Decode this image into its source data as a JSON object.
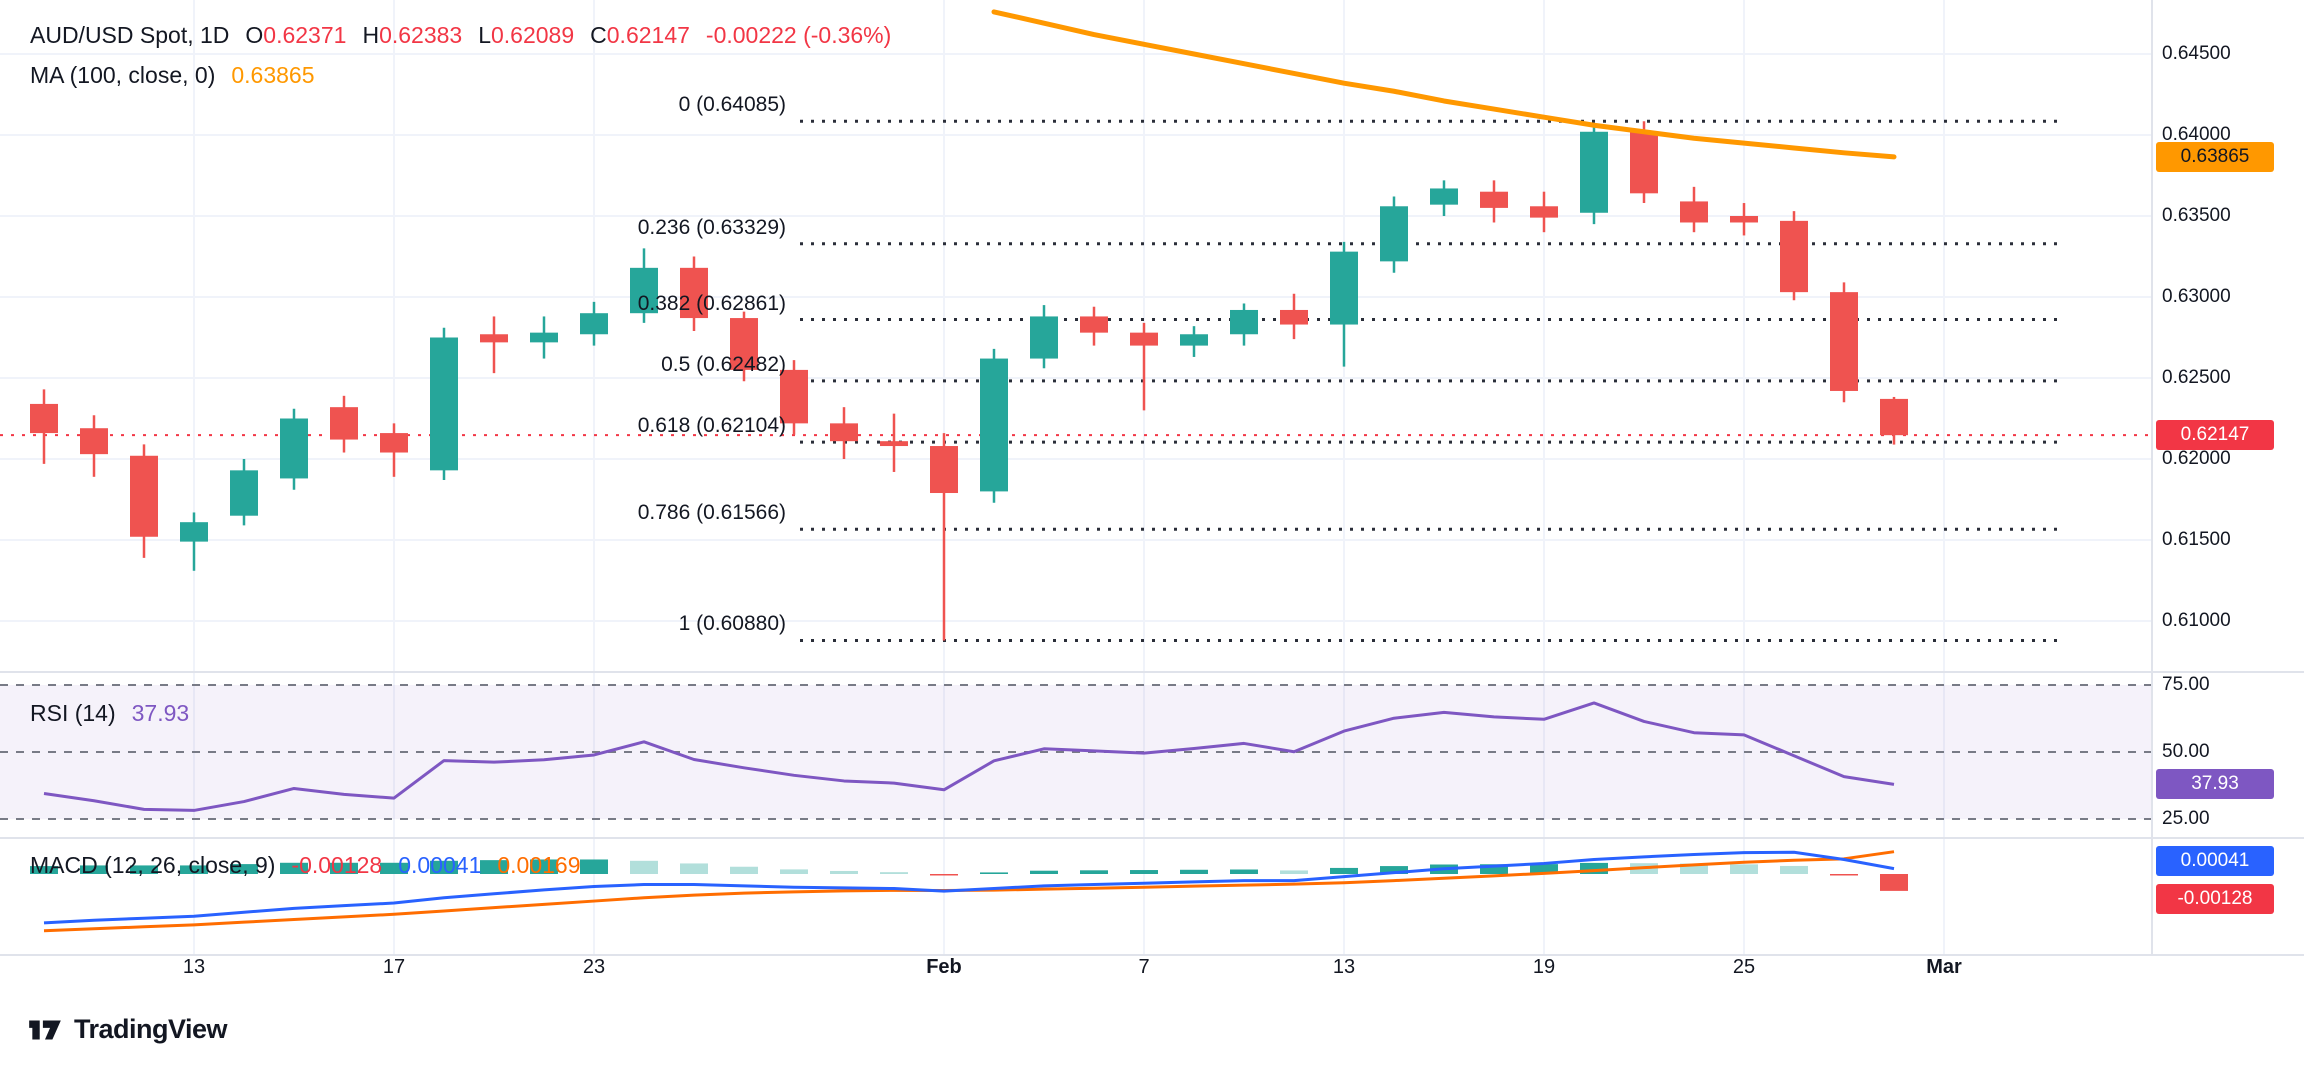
{
  "header": {
    "symbol": "AUD/USD Spot, 1D",
    "open_label": "O",
    "open": "0.62371",
    "high_label": "H",
    "high": "0.62383",
    "low_label": "L",
    "low": "0.62089",
    "close_label": "C",
    "close": "0.62147",
    "change": "-0.00222 (-0.36%)",
    "ma_label": "MA (100, close, 0)",
    "ma_value": "0.63865"
  },
  "rsi_legend": {
    "label": "RSI (14)",
    "value": "37.93"
  },
  "macd_legend": {
    "label": "MACD (12, 26, close, 9)",
    "hist_value": "-0.00128",
    "macd_value": "0.00041",
    "signal_value": "0.00169"
  },
  "badges": {
    "ma": "0.63865",
    "last_price": "0.62147",
    "rsi": "37.93",
    "macd": "0.00041",
    "hist": "-0.00128"
  },
  "attribution": {
    "text": "TradingView"
  },
  "colors": {
    "background": "#ffffff",
    "text": "#131722",
    "grid": "#f0f3fa",
    "separator": "#e0e3eb",
    "up": "#26a69a",
    "down": "#ef5350",
    "red_text": "#f23645",
    "ma": "#ff9800",
    "rsi": "#7e57c2",
    "rsi_band": "rgba(126,87,194,0.08)",
    "rsi_guide": "#787b86",
    "fib": "#2a2e39",
    "macd_line": "#2962ff",
    "macd_signal": "#ff6d00",
    "hist_up": "#26a69a",
    "hist_up_light": "#b2dfdb",
    "hist_dn": "#ef5350",
    "hist_dn_light": "#fccbcd"
  },
  "chart_data": {
    "type": "candlestick",
    "title": "AUD/USD Spot",
    "interval": "1D",
    "last_price": 0.62147,
    "candles": [
      [
        0.6234,
        0.6243,
        0.6197,
        0.6216
      ],
      [
        0.6219,
        0.6227,
        0.6189,
        0.6203
      ],
      [
        0.6202,
        0.6209,
        0.6139,
        0.6152
      ],
      [
        0.6149,
        0.6167,
        0.6131,
        0.6161
      ],
      [
        0.6165,
        0.62,
        0.6159,
        0.6193
      ],
      [
        0.6188,
        0.6231,
        0.6181,
        0.6225
      ],
      [
        0.6232,
        0.6239,
        0.6204,
        0.6212
      ],
      [
        0.6216,
        0.6222,
        0.6189,
        0.6204
      ],
      [
        0.6193,
        0.6281,
        0.6187,
        0.6275
      ],
      [
        0.6277,
        0.6288,
        0.6253,
        0.6272
      ],
      [
        0.6272,
        0.6288,
        0.6262,
        0.6278
      ],
      [
        0.6277,
        0.6297,
        0.627,
        0.629
      ],
      [
        0.629,
        0.633,
        0.6284,
        0.6318
      ],
      [
        0.6318,
        0.6325,
        0.6279,
        0.6287
      ],
      [
        0.6287,
        0.6291,
        0.6248,
        0.6255
      ],
      [
        0.6255,
        0.6261,
        0.6215,
        0.6222
      ],
      [
        0.6222,
        0.6232,
        0.62,
        0.6211
      ],
      [
        0.6211,
        0.6228,
        0.6192,
        0.6208
      ],
      [
        0.6208,
        0.6216,
        0.6088,
        0.6179
      ],
      [
        0.618,
        0.6268,
        0.6173,
        0.6262
      ],
      [
        0.6262,
        0.6295,
        0.6256,
        0.6288
      ],
      [
        0.6288,
        0.6294,
        0.627,
        0.6278
      ],
      [
        0.6278,
        0.6284,
        0.623,
        0.627
      ],
      [
        0.627,
        0.6282,
        0.6263,
        0.6277
      ],
      [
        0.6277,
        0.6296,
        0.627,
        0.6292
      ],
      [
        0.6292,
        0.6302,
        0.6274,
        0.6283
      ],
      [
        0.6283,
        0.6334,
        0.6257,
        0.6328
      ],
      [
        0.6322,
        0.6362,
        0.6315,
        0.6356
      ],
      [
        0.6357,
        0.6372,
        0.635,
        0.6367
      ],
      [
        0.6365,
        0.6372,
        0.6346,
        0.6355
      ],
      [
        0.6356,
        0.6365,
        0.634,
        0.6349
      ],
      [
        0.6352,
        0.6407,
        0.6345,
        0.6402
      ],
      [
        0.6402,
        0.64085,
        0.6358,
        0.6364
      ],
      [
        0.6359,
        0.6368,
        0.634,
        0.6346
      ],
      [
        0.635,
        0.6358,
        0.6338,
        0.6346
      ],
      [
        0.6347,
        0.6353,
        0.6298,
        0.6303
      ],
      [
        0.6303,
        0.6309,
        0.6235,
        0.6242
      ],
      [
        0.62371,
        0.62383,
        0.62089,
        0.62147
      ]
    ],
    "ma100": {
      "start_index": 19,
      "values": [
        0.6476,
        0.6469,
        0.6462,
        0.6456,
        0.645,
        0.6444,
        0.6438,
        0.6432,
        0.6427,
        0.6421,
        0.6416,
        0.6411,
        0.6406,
        0.6402,
        0.6398,
        0.6395,
        0.6392,
        0.6389,
        0.63865
      ],
      "last": 0.63865
    },
    "fib_levels": [
      {
        "label": "0 (0.64085)",
        "value": 0.64085
      },
      {
        "label": "0.236 (0.63329)",
        "value": 0.63329
      },
      {
        "label": "0.382 (0.62861)",
        "value": 0.62861
      },
      {
        "label": "0.5 (0.62482)",
        "value": 0.62482
      },
      {
        "label": "0.618 (0.62104)",
        "value": 0.62104
      },
      {
        "label": "0.786 (0.61566)",
        "value": 0.61566
      },
      {
        "label": "1 (0.60880)",
        "value": 0.6088
      }
    ],
    "price_axis_ticks": [
      {
        "label": "0.64500",
        "value": 0.645
      },
      {
        "label": "0.64000",
        "value": 0.64
      },
      {
        "label": "0.63500",
        "value": 0.635
      },
      {
        "label": "0.63000",
        "value": 0.63
      },
      {
        "label": "0.62500",
        "value": 0.625
      },
      {
        "label": "0.62000",
        "value": 0.62
      },
      {
        "label": "0.61500",
        "value": 0.615
      },
      {
        "label": "0.61000",
        "value": 0.61
      }
    ],
    "time_axis_labels": [
      {
        "index": 3,
        "label": "13"
      },
      {
        "index": 7,
        "label": "17"
      },
      {
        "index": 11,
        "label": "23"
      },
      {
        "index": 18,
        "label": "Feb",
        "major": true
      },
      {
        "index": 22,
        "label": "7"
      },
      {
        "index": 26,
        "label": "13"
      },
      {
        "index": 30,
        "label": "19"
      },
      {
        "index": 34,
        "label": "25"
      },
      {
        "index": 38,
        "label": "Mar",
        "major": true
      }
    ],
    "rsi": {
      "ticks": [
        75,
        50,
        25
      ],
      "last": 37.93,
      "values": [
        34.5,
        31.8,
        28.6,
        28.2,
        31.5,
        36.4,
        34.2,
        32.8,
        46.8,
        46.2,
        47.1,
        48.9,
        53.8,
        47.2,
        44.1,
        41.3,
        39.2,
        38.4,
        35.9,
        46.7,
        51.2,
        50.4,
        49.6,
        51.3,
        53.2,
        50.1,
        57.8,
        62.6,
        64.8,
        63.1,
        62.2,
        68.3,
        61.4,
        57.2,
        56.4,
        48.6,
        40.8,
        37.93
      ]
    },
    "macd": {
      "last_macd": 0.00041,
      "last_signal": 0.00169,
      "last_hist": -0.00128,
      "macd": [
        -0.0037,
        -0.0035,
        -0.00335,
        -0.0032,
        -0.0029,
        -0.0026,
        -0.0024,
        -0.0022,
        -0.0018,
        -0.0015,
        -0.0012,
        -0.00095,
        -0.0008,
        -0.0008,
        -0.0009,
        -0.001,
        -0.00105,
        -0.0011,
        -0.0013,
        -0.0011,
        -0.0009,
        -0.0008,
        -0.0007,
        -0.0006,
        -0.0005,
        -0.0005,
        -0.0002,
        0.0001,
        0.0004,
        0.0006,
        0.0008,
        0.0011,
        0.0013,
        0.00148,
        0.00162,
        0.00165,
        0.0011,
        0.00041
      ],
      "signal": [
        -0.0043,
        -0.00415,
        -0.004,
        -0.00385,
        -0.00365,
        -0.00345,
        -0.00325,
        -0.00305,
        -0.0028,
        -0.00255,
        -0.0023,
        -0.00205,
        -0.0018,
        -0.0016,
        -0.00145,
        -0.00135,
        -0.00128,
        -0.00124,
        -0.00125,
        -0.00122,
        -0.00115,
        -0.00108,
        -0.001,
        -0.00092,
        -0.00084,
        -0.00077,
        -0.00066,
        -0.0005,
        -0.00032,
        -0.00014,
        5e-05,
        0.00026,
        0.00048,
        0.00069,
        0.00089,
        0.00104,
        0.00115,
        0.00169
      ]
    }
  }
}
